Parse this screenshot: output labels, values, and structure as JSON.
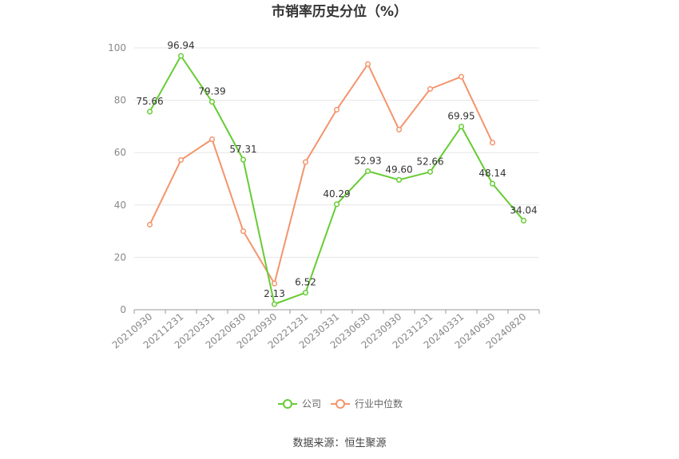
{
  "chart_data": {
    "type": "line",
    "title": "市销率历史分位（%）",
    "categories": [
      "20210930",
      "20211231",
      "20220331",
      "20220630",
      "20220930",
      "20221231",
      "20230331",
      "20230630",
      "20230930",
      "20231231",
      "20240331",
      "20240630",
      "20240820"
    ],
    "ylim": [
      0,
      100
    ],
    "yticks": [
      0,
      20,
      40,
      60,
      80,
      100
    ],
    "grid": true,
    "legend_position": "bottom-center",
    "series": [
      {
        "name": "公司",
        "color": "#66cc33",
        "values": [
          75.66,
          96.94,
          79.39,
          57.31,
          2.13,
          6.52,
          40.29,
          52.93,
          49.6,
          52.66,
          69.95,
          48.14,
          34.04
        ],
        "labels": [
          "75.66",
          "96.94",
          "79.39",
          "57.31",
          "2.13",
          "6.52",
          "40.29",
          "52.93",
          "49.60",
          "52.66",
          "69.95",
          "48.14",
          "34.04"
        ]
      },
      {
        "name": "行业中位数",
        "color": "#f4946c",
        "values": [
          32.5,
          57.2,
          65.1,
          30.0,
          10.0,
          56.4,
          76.4,
          93.8,
          68.8,
          84.3,
          89.0,
          63.8,
          null
        ]
      }
    ]
  },
  "source": "数据来源：恒生聚源"
}
